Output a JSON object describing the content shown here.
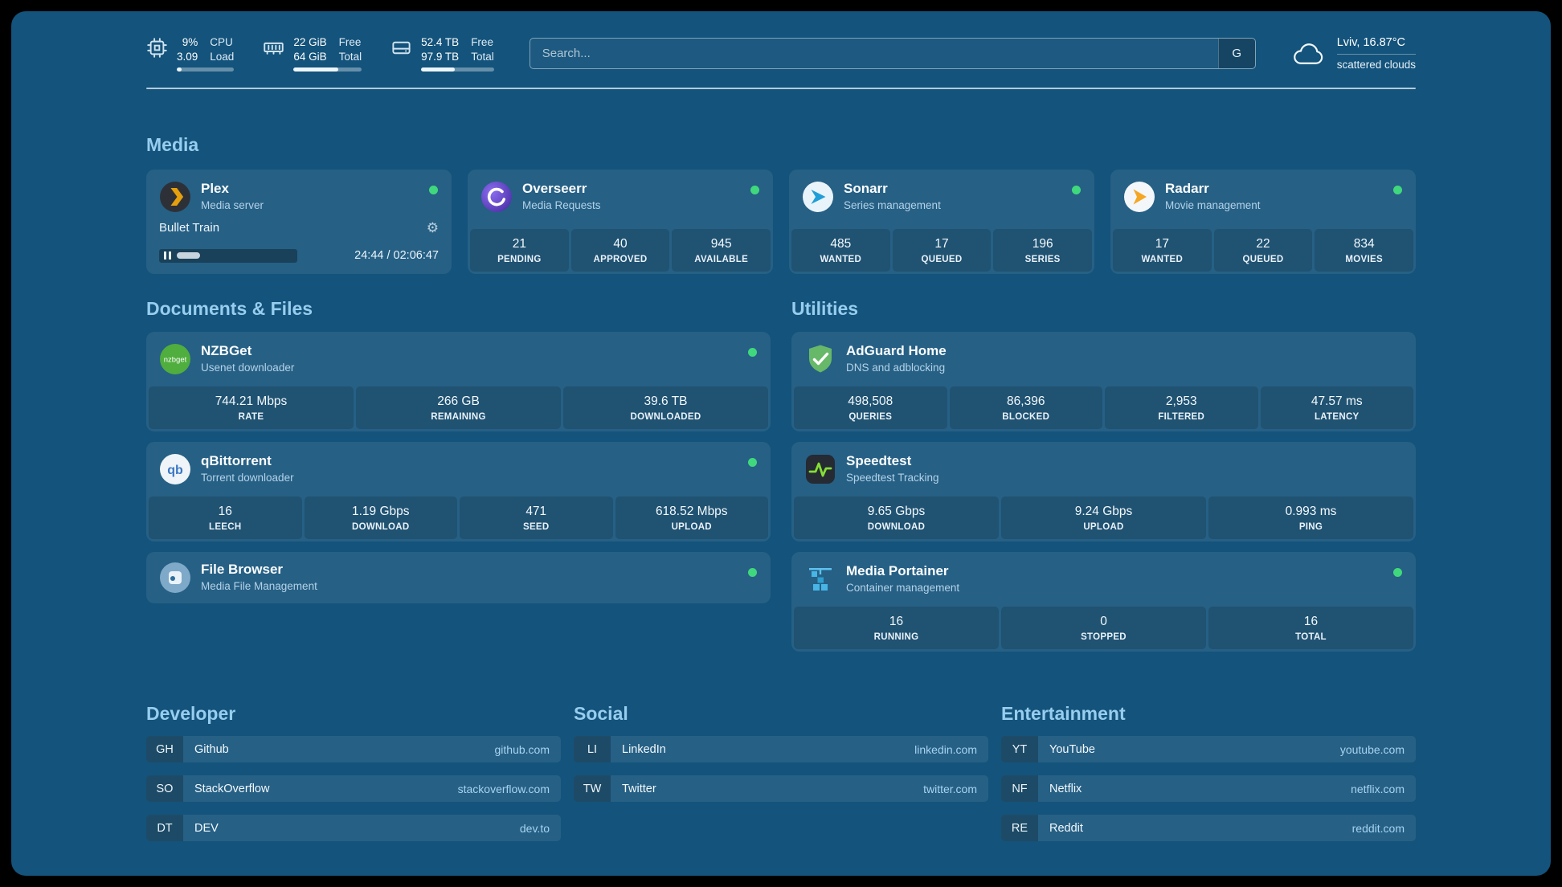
{
  "system": {
    "cpu": {
      "value_top": "9%",
      "value_bottom": "3.09",
      "label_top": "CPU",
      "label_bottom": "Load",
      "bar_percent": 9
    },
    "memory": {
      "value_top": "22 GiB",
      "value_bottom": "64 GiB",
      "label_top": "Free",
      "label_bottom": "Total",
      "bar_percent": 66
    },
    "disk": {
      "value_top": "52.4 TB",
      "value_bottom": "97.9 TB",
      "label_top": "Free",
      "label_bottom": "Total",
      "bar_percent": 46
    }
  },
  "search": {
    "placeholder": "Search...",
    "provider_label": "G"
  },
  "weather": {
    "location": "Lviv, 16.87°C",
    "condition": "scattered clouds"
  },
  "icons": {
    "gear": "⚙"
  },
  "sections": {
    "media": {
      "title": "Media"
    },
    "documents": {
      "title": "Documents & Files"
    },
    "utilities": {
      "title": "Utilities"
    },
    "developer": {
      "title": "Developer"
    },
    "social": {
      "title": "Social"
    },
    "entertainment": {
      "title": "Entertainment"
    }
  },
  "services": {
    "plex": {
      "name": "Plex",
      "desc": "Media server",
      "now_playing": "Bullet Train",
      "time": "24:44 / 02:06:47",
      "progress_percent": 20
    },
    "overseerr": {
      "name": "Overseerr",
      "desc": "Media Requests",
      "stats": [
        {
          "value": "21",
          "label": "PENDING"
        },
        {
          "value": "40",
          "label": "APPROVED"
        },
        {
          "value": "945",
          "label": "AVAILABLE"
        }
      ]
    },
    "sonarr": {
      "name": "Sonarr",
      "desc": "Series management",
      "stats": [
        {
          "value": "485",
          "label": "WANTED"
        },
        {
          "value": "17",
          "label": "QUEUED"
        },
        {
          "value": "196",
          "label": "SERIES"
        }
      ]
    },
    "radarr": {
      "name": "Radarr",
      "desc": "Movie management",
      "stats": [
        {
          "value": "17",
          "label": "WANTED"
        },
        {
          "value": "22",
          "label": "QUEUED"
        },
        {
          "value": "834",
          "label": "MOVIES"
        }
      ]
    },
    "nzbget": {
      "name": "NZBGet",
      "desc": "Usenet downloader",
      "stats": [
        {
          "value": "744.21 Mbps",
          "label": "RATE"
        },
        {
          "value": "266 GB",
          "label": "REMAINING"
        },
        {
          "value": "39.6 TB",
          "label": "DOWNLOADED"
        }
      ]
    },
    "qbittorrent": {
      "name": "qBittorrent",
      "desc": "Torrent downloader",
      "stats": [
        {
          "value": "16",
          "label": "LEECH"
        },
        {
          "value": "1.19 Gbps",
          "label": "DOWNLOAD"
        },
        {
          "value": "471",
          "label": "SEED"
        },
        {
          "value": "618.52 Mbps",
          "label": "UPLOAD"
        }
      ]
    },
    "filebrowser": {
      "name": "File Browser",
      "desc": "Media File Management"
    },
    "adguard": {
      "name": "AdGuard Home",
      "desc": "DNS and adblocking",
      "stats": [
        {
          "value": "498,508",
          "label": "QUERIES"
        },
        {
          "value": "86,396",
          "label": "BLOCKED"
        },
        {
          "value": "2,953",
          "label": "FILTERED"
        },
        {
          "value": "47.57 ms",
          "label": "LATENCY"
        }
      ]
    },
    "speedtest": {
      "name": "Speedtest",
      "desc": "Speedtest Tracking",
      "stats": [
        {
          "value": "9.65 Gbps",
          "label": "DOWNLOAD"
        },
        {
          "value": "9.24 Gbps",
          "label": "UPLOAD"
        },
        {
          "value": "0.993 ms",
          "label": "PING"
        }
      ]
    },
    "portainer": {
      "name": "Media Portainer",
      "desc": "Container management",
      "stats": [
        {
          "value": "16",
          "label": "RUNNING"
        },
        {
          "value": "0",
          "label": "STOPPED"
        },
        {
          "value": "16",
          "label": "TOTAL"
        }
      ]
    }
  },
  "bookmarks": {
    "developer": [
      {
        "abbr": "GH",
        "name": "Github",
        "url": "github.com"
      },
      {
        "abbr": "SO",
        "name": "StackOverflow",
        "url": "stackoverflow.com"
      },
      {
        "abbr": "DT",
        "name": "DEV",
        "url": "dev.to"
      }
    ],
    "social": [
      {
        "abbr": "LI",
        "name": "LinkedIn",
        "url": "linkedin.com"
      },
      {
        "abbr": "TW",
        "name": "Twitter",
        "url": "twitter.com"
      }
    ],
    "entertainment": [
      {
        "abbr": "YT",
        "name": "YouTube",
        "url": "youtube.com"
      },
      {
        "abbr": "NF",
        "name": "Netflix",
        "url": "netflix.com"
      },
      {
        "abbr": "RE",
        "name": "Reddit",
        "url": "reddit.com"
      }
    ]
  }
}
